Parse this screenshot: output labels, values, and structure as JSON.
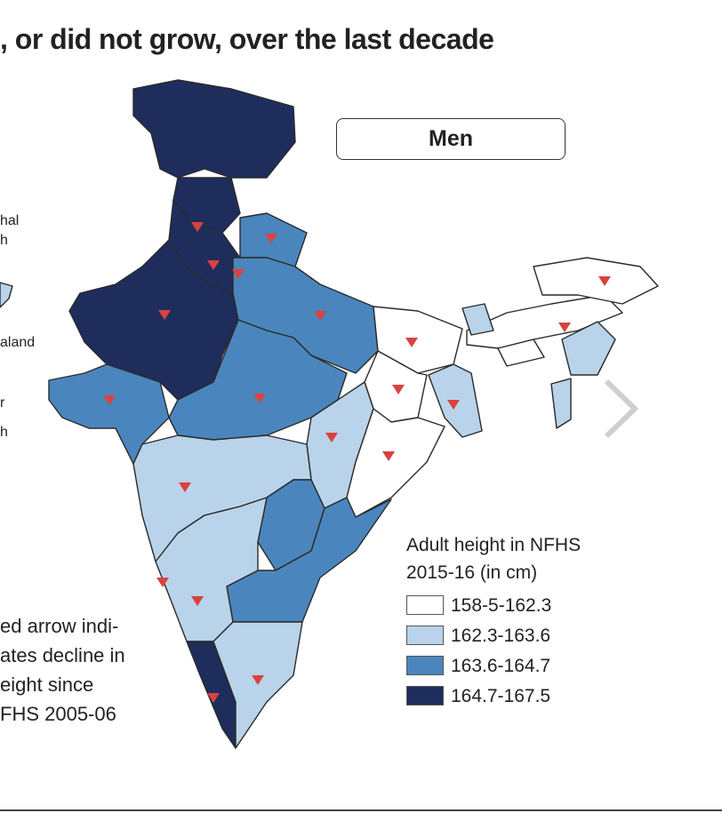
{
  "title": ", or did not grow, over the last decade",
  "panel_label": "Men",
  "side_labels": [
    "hal",
    "h",
    "aland",
    "r",
    "h"
  ],
  "note_lines": [
    "ed arrow indi-",
    "ates decline in",
    "eight since",
    "FHS 2005-06"
  ],
  "legend": {
    "title_line1": "Adult height in NFHS",
    "title_line2": "2015-16 (in cm)",
    "items": [
      {
        "label": "158-5-162.3",
        "color": "#ffffff"
      },
      {
        "label": "162.3-163.6",
        "color": "#b9d3ea"
      },
      {
        "label": "163.6-164.7",
        "color": "#4a86bd"
      },
      {
        "label": "164.7-167.5",
        "color": "#1e2d5c"
      }
    ]
  },
  "marker_color": "#d9423f",
  "marker_meaning": "decline-in-height",
  "next_icon": "chevron-right-icon"
}
